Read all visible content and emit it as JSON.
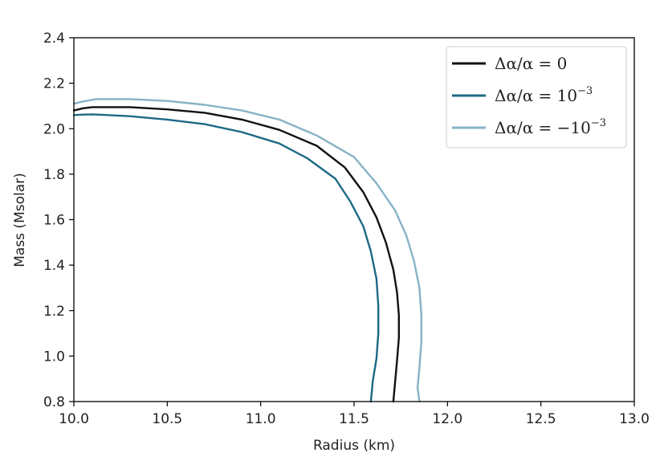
{
  "chart_data": {
    "type": "line",
    "title": "",
    "xlabel": "Radius (km)",
    "ylabel": "Mass (Msolar)",
    "xlim": [
      10.0,
      13.0
    ],
    "ylim": [
      0.8,
      2.4
    ],
    "xticks": [
      "10.0",
      "10.5",
      "11.0",
      "11.5",
      "12.0",
      "12.5",
      "13.0"
    ],
    "yticks": [
      "0.8",
      "1.0",
      "1.2",
      "1.4",
      "1.6",
      "1.8",
      "2.0",
      "2.2",
      "2.4"
    ],
    "grid": false,
    "legend_position": "top-right",
    "series": [
      {
        "name": "Δα/α = 0",
        "label_main": "Δα/α = 0",
        "label_exp": "",
        "color": "#111111",
        "points": [
          [
            10.0,
            2.08
          ],
          [
            10.05,
            2.09
          ],
          [
            10.1,
            2.095
          ],
          [
            10.3,
            2.095
          ],
          [
            10.5,
            2.085
          ],
          [
            10.7,
            2.07
          ],
          [
            10.9,
            2.04
          ],
          [
            11.1,
            1.995
          ],
          [
            11.3,
            1.925
          ],
          [
            11.45,
            1.83
          ],
          [
            11.55,
            1.72
          ],
          [
            11.62,
            1.61
          ],
          [
            11.67,
            1.5
          ],
          [
            11.71,
            1.38
          ],
          [
            11.73,
            1.28
          ],
          [
            11.74,
            1.18
          ],
          [
            11.74,
            1.08
          ],
          [
            11.73,
            0.98
          ],
          [
            11.72,
            0.89
          ],
          [
            11.71,
            0.8
          ]
        ]
      },
      {
        "name": "Δα/α = 10^-3",
        "label_main": "Δα/α = 10",
        "label_exp": "−3",
        "color": "#1d6985",
        "points": [
          [
            10.0,
            2.06
          ],
          [
            10.05,
            2.062
          ],
          [
            10.1,
            2.063
          ],
          [
            10.3,
            2.055
          ],
          [
            10.5,
            2.04
          ],
          [
            10.7,
            2.02
          ],
          [
            10.9,
            1.985
          ],
          [
            11.1,
            1.935
          ],
          [
            11.25,
            1.87
          ],
          [
            11.4,
            1.78
          ],
          [
            11.48,
            1.68
          ],
          [
            11.55,
            1.57
          ],
          [
            11.59,
            1.46
          ],
          [
            11.62,
            1.34
          ],
          [
            11.63,
            1.22
          ],
          [
            11.63,
            1.1
          ],
          [
            11.62,
            0.99
          ],
          [
            11.6,
            0.89
          ],
          [
            11.59,
            0.8
          ]
        ]
      },
      {
        "name": "Δα/α = −10^-3",
        "label_main": "Δα/α = −10",
        "label_exp": "−3",
        "color": "#87b3c6",
        "points": [
          [
            10.0,
            2.11
          ],
          [
            10.05,
            2.12
          ],
          [
            10.12,
            2.13
          ],
          [
            10.3,
            2.13
          ],
          [
            10.5,
            2.122
          ],
          [
            10.7,
            2.105
          ],
          [
            10.9,
            2.08
          ],
          [
            11.1,
            2.04
          ],
          [
            11.3,
            1.97
          ],
          [
            11.5,
            1.875
          ],
          [
            11.62,
            1.76
          ],
          [
            11.72,
            1.64
          ],
          [
            11.78,
            1.53
          ],
          [
            11.82,
            1.42
          ],
          [
            11.85,
            1.3
          ],
          [
            11.86,
            1.18
          ],
          [
            11.86,
            1.06
          ],
          [
            11.85,
            0.95
          ],
          [
            11.84,
            0.86
          ],
          [
            11.85,
            0.8
          ]
        ]
      }
    ]
  }
}
